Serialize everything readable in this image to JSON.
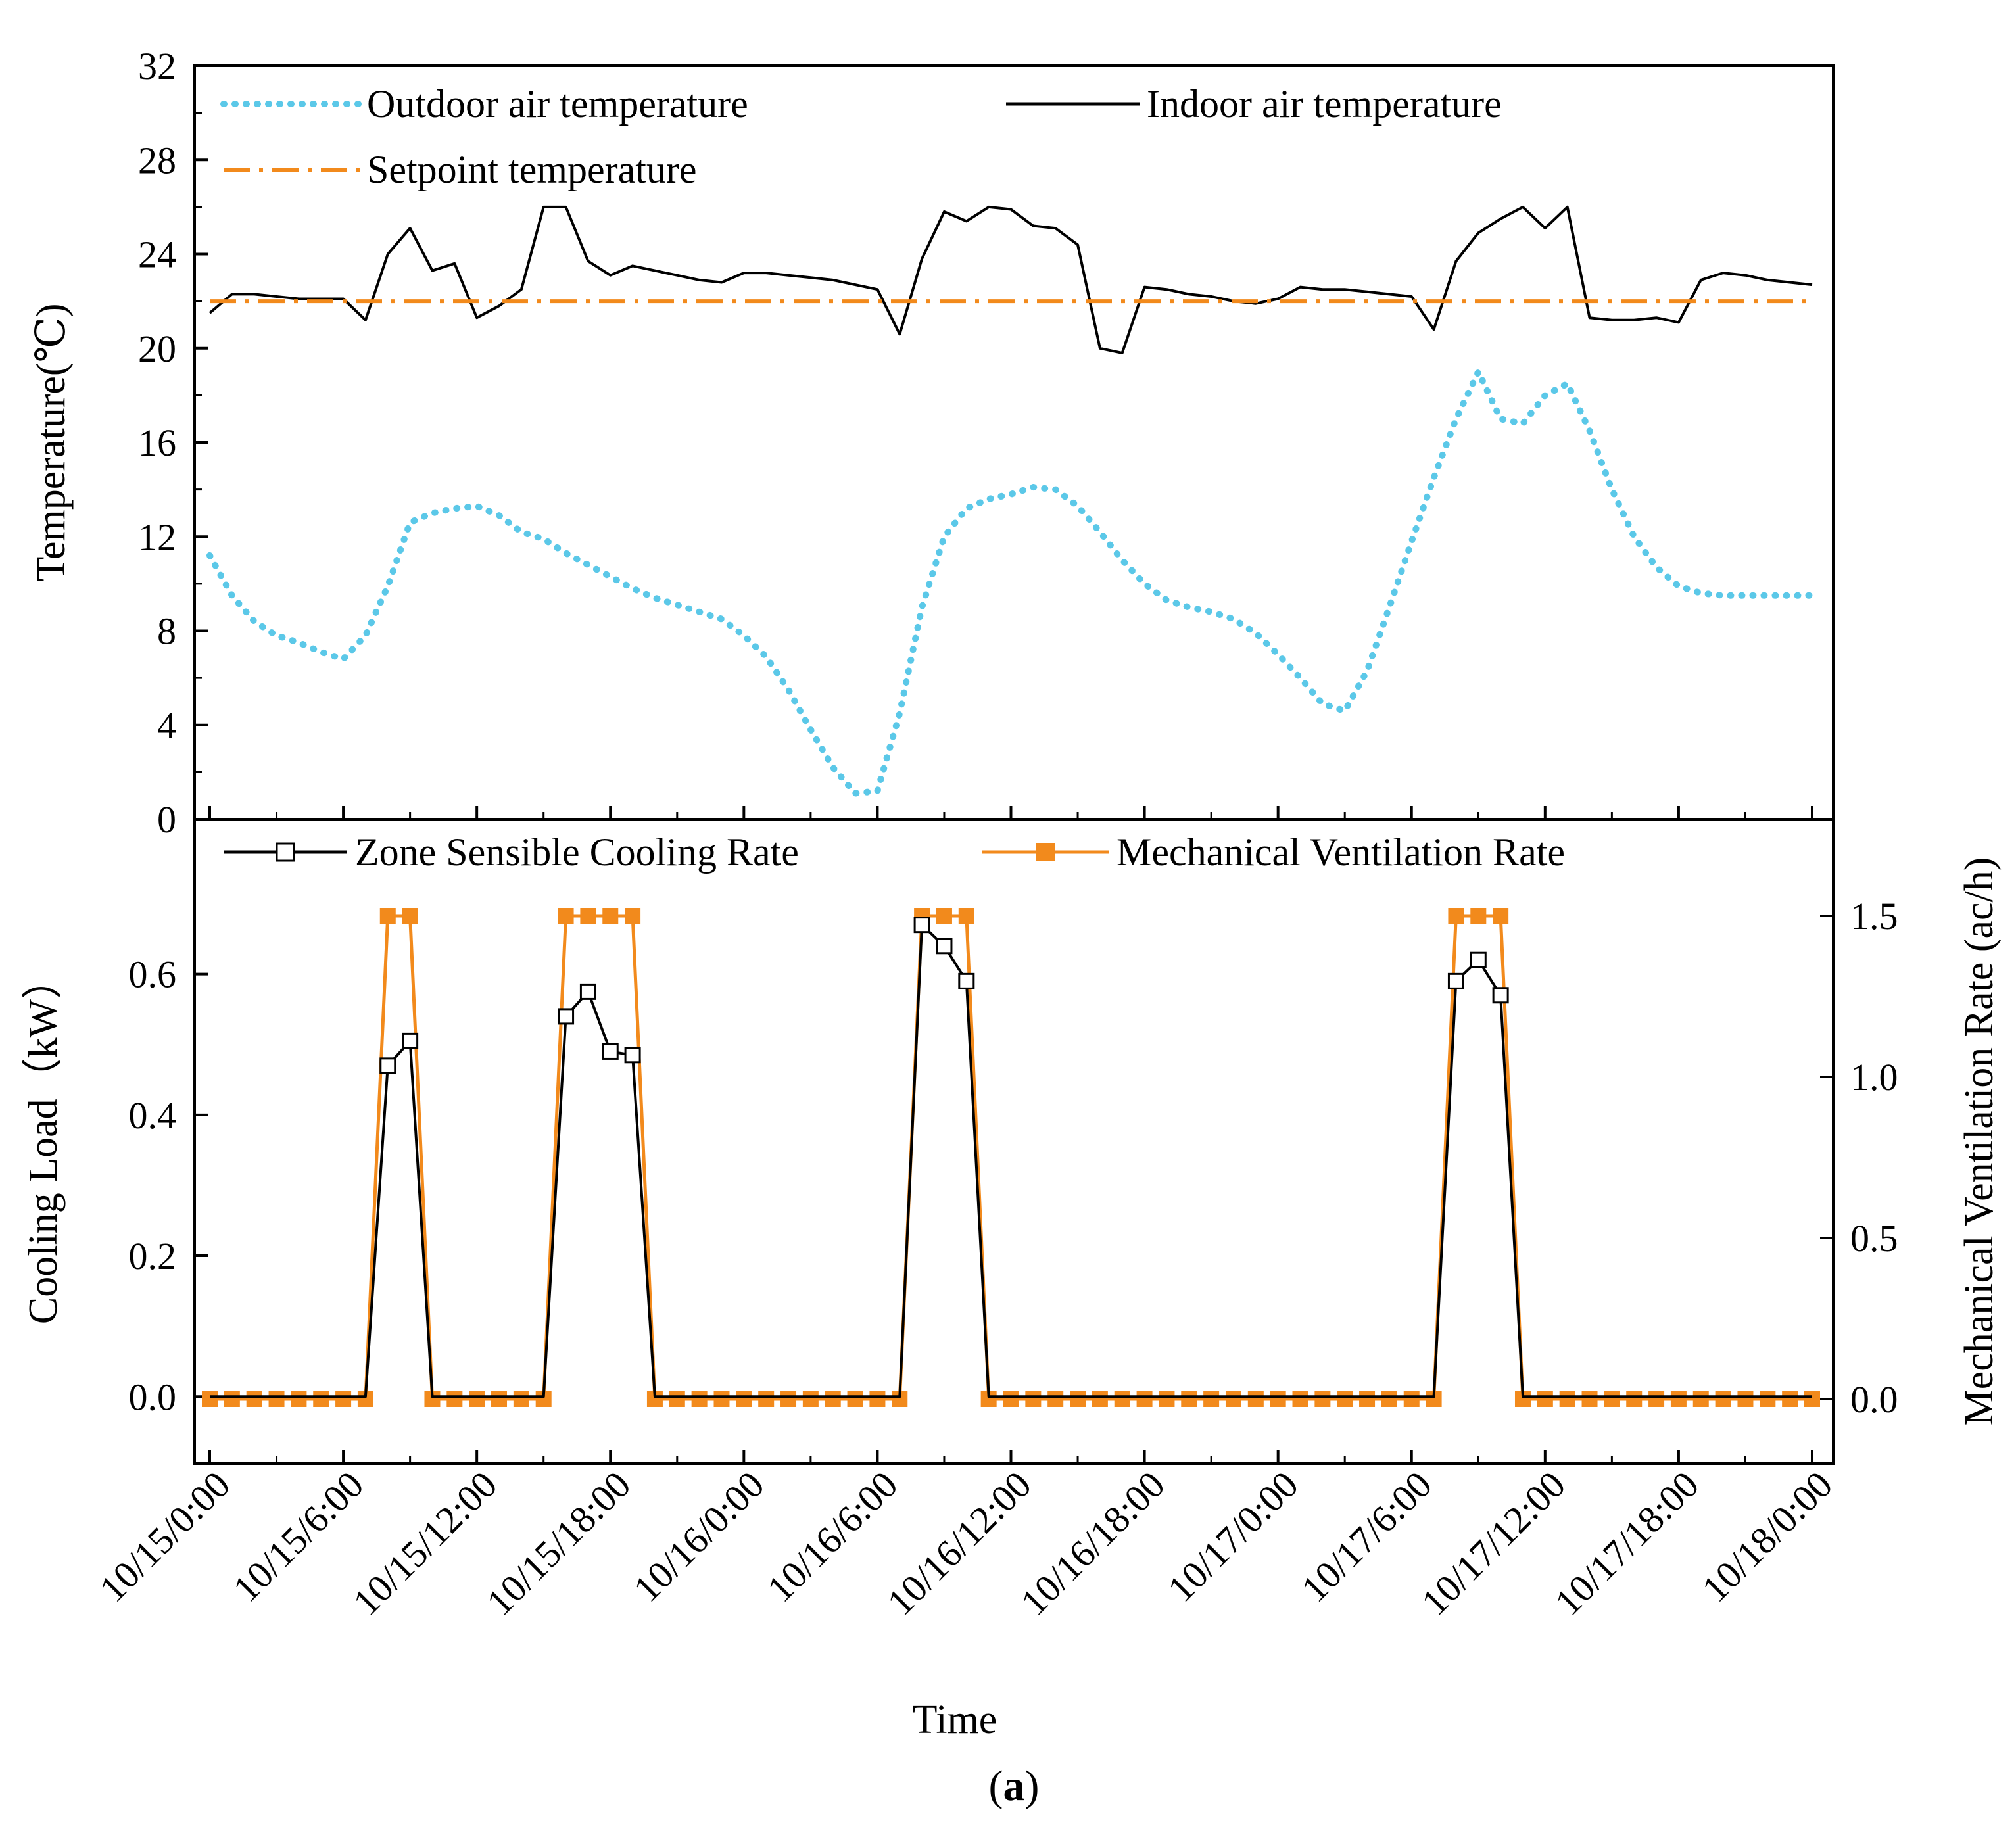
{
  "colors": {
    "outdoor": "#5bc8e8",
    "indoor": "#000000",
    "setpoint": "#f28a1c",
    "cooling": "#000000",
    "ventilation": "#f28a1c"
  },
  "x_axis": {
    "title": "Time",
    "range_hours": [
      0,
      72
    ],
    "tick_labels": [
      "10/15/0:00",
      "10/15/6:00",
      "10/15/12:00",
      "10/15/18:00",
      "10/16/0:00",
      "10/16/6:00",
      "10/16/12:00",
      "10/16/18:00",
      "10/17/0:00",
      "10/17/6:00",
      "10/17/12:00",
      "10/17/18:00",
      "10/18/0:00"
    ],
    "tick_hours": [
      0,
      6,
      12,
      18,
      24,
      30,
      36,
      42,
      48,
      54,
      60,
      66,
      72
    ]
  },
  "caption": {
    "open": "(",
    "letter": "a",
    "close": ")"
  },
  "chart_data": [
    {
      "type": "line",
      "panel": "top",
      "ylabel": "Temperature(℃)",
      "ylim": [
        0,
        32
      ],
      "yticks": [
        0,
        4,
        8,
        12,
        16,
        20,
        24,
        28,
        32
      ],
      "ytick_labels": [
        "0",
        "4",
        "8",
        "12",
        "16",
        "20",
        "24",
        "28",
        "32"
      ],
      "series": [
        {
          "name": "Outdoor air temperature",
          "style": "dotted",
          "x": [
            0,
            1,
            2,
            3,
            4,
            5,
            6,
            7,
            8,
            9,
            10,
            11,
            12,
            13,
            14,
            15,
            16,
            17,
            18,
            19,
            20,
            21,
            22,
            23,
            24,
            25,
            26,
            27,
            28,
            29,
            30,
            31,
            32,
            33,
            34,
            35,
            36,
            37,
            38,
            39,
            40,
            41,
            42,
            43,
            44,
            45,
            46,
            47,
            48,
            49,
            50,
            51,
            52,
            53,
            54,
            55,
            56,
            57,
            58,
            59,
            60,
            61,
            62,
            63,
            64,
            65,
            66,
            67,
            68,
            69,
            70,
            71,
            72
          ],
          "values": [
            11.2,
            9.5,
            8.4,
            7.8,
            7.5,
            7.1,
            6.8,
            7.8,
            9.9,
            12.6,
            13.0,
            13.2,
            13.3,
            12.9,
            12.2,
            11.9,
            11.3,
            10.8,
            10.3,
            9.8,
            9.4,
            9.1,
            8.8,
            8.5,
            7.8,
            6.9,
            5.5,
            3.8,
            2.2,
            1.1,
            1.2,
            4.5,
            9.0,
            12.0,
            13.2,
            13.6,
            13.8,
            14.1,
            14.0,
            13.3,
            12.2,
            11.0,
            10.0,
            9.3,
            9.0,
            8.8,
            8.5,
            7.9,
            7.0,
            6.0,
            4.9,
            4.6,
            6.3,
            9.0,
            11.8,
            14.5,
            17.0,
            19.0,
            17.0,
            16.8,
            18.0,
            18.5,
            16.5,
            14.0,
            12.0,
            10.7,
            9.9,
            9.6,
            9.5,
            9.5,
            9.5,
            9.5,
            9.5
          ]
        },
        {
          "name": "Indoor air temperature",
          "style": "solid",
          "x": [
            0,
            1,
            2,
            3,
            4,
            5,
            6,
            7,
            8,
            9,
            10,
            11,
            12,
            13,
            14,
            15,
            16,
            17,
            18,
            19,
            20,
            21,
            22,
            23,
            24,
            25,
            26,
            27,
            28,
            29,
            30,
            31,
            32,
            33,
            34,
            35,
            36,
            37,
            38,
            39,
            40,
            41,
            42,
            43,
            44,
            45,
            46,
            47,
            48,
            49,
            50,
            51,
            52,
            53,
            54,
            55,
            56,
            57,
            58,
            59,
            60,
            61,
            62,
            63,
            64,
            65,
            66,
            67,
            68,
            69,
            70,
            71,
            72
          ],
          "values": [
            21.5,
            22.3,
            22.3,
            22.2,
            22.1,
            22.1,
            22.1,
            21.2,
            24.0,
            25.1,
            23.3,
            23.6,
            21.3,
            21.8,
            22.5,
            26.0,
            26.0,
            23.7,
            23.1,
            23.5,
            23.3,
            23.1,
            22.9,
            22.8,
            23.2,
            23.2,
            23.1,
            23.0,
            22.9,
            22.7,
            22.5,
            20.6,
            23.8,
            25.8,
            25.4,
            26.0,
            25.9,
            25.2,
            25.1,
            24.4,
            20.0,
            19.8,
            22.6,
            22.5,
            22.3,
            22.2,
            22.0,
            21.9,
            22.1,
            22.6,
            22.5,
            22.5,
            22.4,
            22.3,
            22.2,
            20.8,
            23.7,
            24.9,
            25.5,
            26.0,
            25.1,
            26.0,
            21.3,
            21.2,
            21.2,
            21.3,
            21.1,
            22.9,
            23.2,
            23.1,
            22.9,
            22.8,
            22.7
          ]
        },
        {
          "name": "Setpoint temperature",
          "style": "dash-dot",
          "x": [
            0,
            72
          ],
          "values": [
            22,
            22
          ]
        }
      ]
    },
    {
      "type": "line",
      "panel": "bottom",
      "ylabel": "Cooling Load（kW）",
      "ylim": [
        -0.095,
        0.82
      ],
      "yticks": [
        0,
        0.2,
        0.4,
        0.6
      ],
      "ytick_labels": [
        "0.0",
        "0.2",
        "0.4",
        "0.6"
      ],
      "y2label": "Mechanical Ventilation Rate (ac/h)",
      "y2lim": [
        -0.2,
        1.8
      ],
      "y2ticks": [
        0,
        0.5,
        1.0,
        1.5
      ],
      "y2tick_labels": [
        "0.0",
        "0.5",
        "1.0",
        "1.5"
      ],
      "series": [
        {
          "name": "Zone Sensible Cooling Rate",
          "axis": "left",
          "x": [
            0,
            1,
            2,
            3,
            4,
            5,
            6,
            7,
            8,
            9,
            10,
            11,
            12,
            13,
            14,
            15,
            16,
            17,
            18,
            19,
            20,
            21,
            22,
            23,
            24,
            25,
            26,
            27,
            28,
            29,
            30,
            31,
            32,
            33,
            34,
            35,
            36,
            37,
            38,
            39,
            40,
            41,
            42,
            43,
            44,
            45,
            46,
            47,
            48,
            49,
            50,
            51,
            52,
            53,
            54,
            55,
            56,
            57,
            58,
            59,
            60,
            61,
            62,
            63,
            64,
            65,
            66,
            67,
            68,
            69,
            70,
            71,
            72
          ],
          "values": [
            0,
            0,
            0,
            0,
            0,
            0,
            0,
            0,
            0.47,
            0.505,
            0,
            0,
            0,
            0,
            0,
            0,
            0.54,
            0.575,
            0.49,
            0.485,
            0,
            0,
            0,
            0,
            0,
            0,
            0,
            0,
            0,
            0,
            0,
            0,
            0.67,
            0.64,
            0.59,
            0,
            0,
            0,
            0,
            0,
            0,
            0,
            0,
            0,
            0,
            0,
            0,
            0,
            0,
            0,
            0,
            0,
            0,
            0,
            0,
            0,
            0.59,
            0.62,
            0.57,
            0,
            0,
            0,
            0,
            0,
            0,
            0,
            0,
            0,
            0,
            0,
            0,
            0,
            0
          ],
          "marker_x": [
            8,
            9,
            16,
            17,
            18,
            19,
            32,
            33,
            34,
            56,
            57,
            58
          ],
          "marker_values": [
            0.47,
            0.505,
            0.54,
            0.575,
            0.49,
            0.485,
            0.67,
            0.64,
            0.59,
            0.59,
            0.62,
            0.57
          ]
        },
        {
          "name": "Mechanical Ventilation Rate",
          "axis": "right",
          "x": [
            0,
            1,
            2,
            3,
            4,
            5,
            6,
            7,
            8,
            9,
            10,
            11,
            12,
            13,
            14,
            15,
            16,
            17,
            18,
            19,
            20,
            21,
            22,
            23,
            24,
            25,
            26,
            27,
            28,
            29,
            30,
            31,
            32,
            33,
            34,
            35,
            36,
            37,
            38,
            39,
            40,
            41,
            42,
            43,
            44,
            45,
            46,
            47,
            48,
            49,
            50,
            51,
            52,
            53,
            54,
            55,
            56,
            57,
            58,
            59,
            60,
            61,
            62,
            63,
            64,
            65,
            66,
            67,
            68,
            69,
            70,
            71,
            72
          ],
          "values": [
            0,
            0,
            0,
            0,
            0,
            0,
            0,
            0,
            1.5,
            1.5,
            0,
            0,
            0,
            0,
            0,
            0,
            1.5,
            1.5,
            1.5,
            1.5,
            0,
            0,
            0,
            0,
            0,
            0,
            0,
            0,
            0,
            0,
            0,
            0,
            1.5,
            1.5,
            1.5,
            0,
            0,
            0,
            0,
            0,
            0,
            0,
            0,
            0,
            0,
            0,
            0,
            0,
            0,
            0,
            0,
            0,
            0,
            0,
            0,
            0,
            1.5,
            1.5,
            1.5,
            0,
            0,
            0,
            0,
            0,
            0,
            0,
            0,
            0,
            0,
            0,
            0,
            0,
            0
          ]
        }
      ]
    }
  ]
}
